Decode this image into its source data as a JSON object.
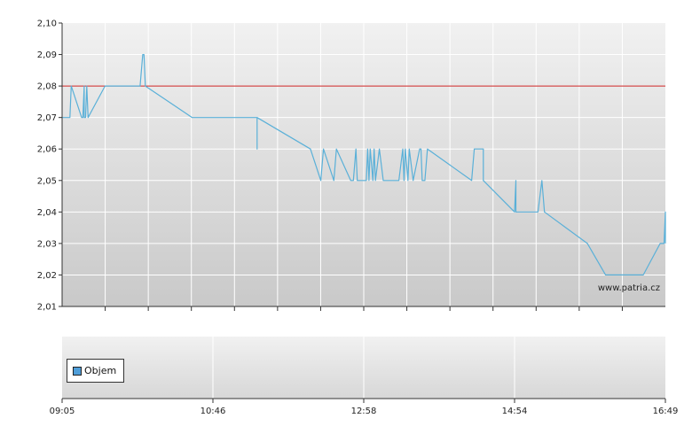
{
  "chart_data": [
    {
      "type": "line",
      "title": "",
      "xlabel": "",
      "ylabel": "",
      "ylim": [
        2.01,
        2.1
      ],
      "yticks": [
        "2,10",
        "2,09",
        "2,08",
        "2,07",
        "2,06",
        "2,05",
        "2,04",
        "2,03",
        "2,02",
        "2,01"
      ],
      "xlim": [
        "09:05",
        "16:49"
      ],
      "grid": true,
      "reference_line": {
        "value": 2.08,
        "color": "#cc2222"
      },
      "series": [
        {
          "color": "#5ab0d8",
          "points": [
            [
              "09:05",
              2.07
            ],
            [
              "09:11",
              2.07
            ],
            [
              "09:12",
              2.08
            ],
            [
              "09:20",
              2.07
            ],
            [
              "09:21",
              2.07
            ],
            [
              "09:22",
              2.08
            ],
            [
              "09:22",
              2.07
            ],
            [
              "09:23",
              2.07
            ],
            [
              "09:24",
              2.08
            ],
            [
              "09:25",
              2.07
            ],
            [
              "09:38",
              2.08
            ],
            [
              "10:05",
              2.08
            ],
            [
              "10:07",
              2.09
            ],
            [
              "10:08",
              2.09
            ],
            [
              "10:09",
              2.08
            ],
            [
              "10:45",
              2.07
            ],
            [
              "11:35",
              2.07
            ],
            [
              "11:35",
              2.06
            ],
            [
              "11:35",
              2.07
            ],
            [
              "12:16",
              2.06
            ],
            [
              "12:24",
              2.05
            ],
            [
              "12:26",
              2.06
            ],
            [
              "12:34",
              2.05
            ],
            [
              "12:36",
              2.06
            ],
            [
              "12:47",
              2.05
            ],
            [
              "12:49",
              2.05
            ],
            [
              "12:51",
              2.06
            ],
            [
              "12:52",
              2.05
            ],
            [
              "12:59",
              2.05
            ],
            [
              "13:00",
              2.06
            ],
            [
              "13:01",
              2.05
            ],
            [
              "13:02",
              2.06
            ],
            [
              "13:04",
              2.05
            ],
            [
              "13:05",
              2.06
            ],
            [
              "13:06",
              2.05
            ],
            [
              "13:09",
              2.06
            ],
            [
              "13:12",
              2.05
            ],
            [
              "13:24",
              2.05
            ],
            [
              "13:27",
              2.06
            ],
            [
              "13:28",
              2.05
            ],
            [
              "13:29",
              2.06
            ],
            [
              "13:31",
              2.05
            ],
            [
              "13:32",
              2.06
            ],
            [
              "13:35",
              2.05
            ],
            [
              "13:40",
              2.06
            ],
            [
              "13:41",
              2.06
            ],
            [
              "13:42",
              2.05
            ],
            [
              "13:44",
              2.05
            ],
            [
              "13:46",
              2.06
            ],
            [
              "14:20",
              2.05
            ],
            [
              "14:22",
              2.06
            ],
            [
              "14:29",
              2.06
            ],
            [
              "14:29",
              2.05
            ],
            [
              "14:53",
              2.04
            ],
            [
              "14:54",
              2.05
            ],
            [
              "14:54",
              2.04
            ],
            [
              "15:11",
              2.04
            ],
            [
              "15:14",
              2.05
            ],
            [
              "15:16",
              2.04
            ],
            [
              "15:49",
              2.03
            ],
            [
              "16:03",
              2.02
            ],
            [
              "16:32",
              2.02
            ],
            [
              "16:45",
              2.03
            ],
            [
              "16:48",
              2.03
            ],
            [
              "16:49",
              2.04
            ],
            [
              "16:49",
              2.03
            ]
          ]
        }
      ],
      "watermark": "www.patria.cz"
    },
    {
      "type": "bar",
      "title": "",
      "xlabel": "",
      "ylabel": "",
      "xticks": [
        "09:05",
        "10:46",
        "12:58",
        "14:54",
        "16:49"
      ],
      "legend": {
        "placement": "bottom-left",
        "entries": [
          "Objem"
        ]
      },
      "legend_color": "#4f9ed9",
      "series": []
    }
  ]
}
